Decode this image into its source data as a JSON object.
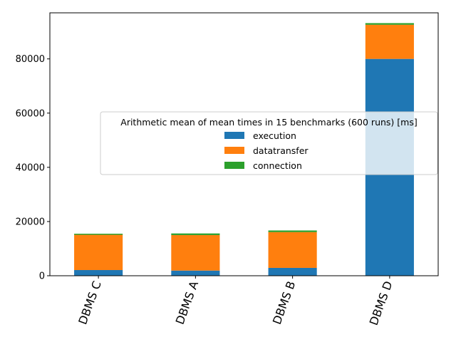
{
  "chart_data": {
    "type": "bar",
    "stacked": true,
    "categories": [
      "DBMS C",
      "DBMS A",
      "DBMS B",
      "DBMS D"
    ],
    "series": [
      {
        "name": "execution",
        "color": "#1f77b4",
        "values": [
          2100,
          1900,
          2900,
          80000
        ]
      },
      {
        "name": "datatransfer",
        "color": "#ff7f0e",
        "values": [
          13000,
          13100,
          13200,
          12600
        ]
      },
      {
        "name": "connection",
        "color": "#2ca02c",
        "values": [
          400,
          600,
          600,
          600
        ]
      }
    ],
    "legend_title": "Arithmetic mean of mean times in 15 benchmarks (600 runs) [ms]",
    "legend_position": "center-right",
    "y_ticks": [
      0,
      20000,
      40000,
      60000,
      80000
    ],
    "y_tick_labels": [
      "0",
      "20000",
      "40000",
      "60000",
      "80000"
    ],
    "ylim": [
      0,
      97000
    ],
    "xlabel": "",
    "ylabel": "",
    "grid": false,
    "x_tick_rotation": "70 degrees"
  }
}
